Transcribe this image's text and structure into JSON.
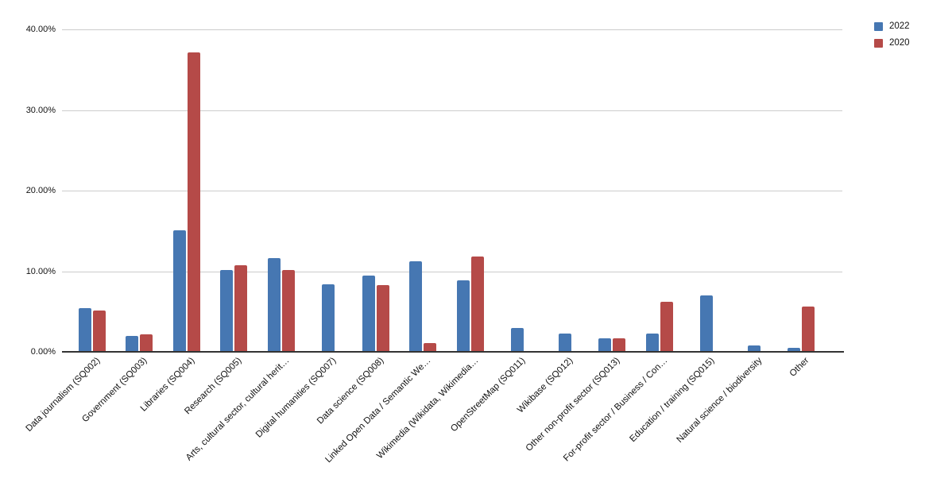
{
  "colors": {
    "background": "#ffffff",
    "gridline": "#cccccc",
    "axis_line": "#333333",
    "text": "#111111",
    "series_2022": "#4677b2",
    "series_2020": "#b54a48"
  },
  "chart_data": {
    "type": "bar",
    "categories": [
      "Data journalism (SQ002)",
      "Government (SQ003)",
      "Libraries (SQ004)",
      "Research (SQ005)",
      "Arts, cultural sector, cultural herit…",
      "Digital humanities (SQ007)",
      "Data science (SQ008)",
      "Linked Open Data / Semantic We…",
      "Wikimedia (Wikidata, Wikimedia…",
      "OpenStreetMap (SQ011)",
      "Wikibase (SQ012)",
      "Other non-profit sector (SQ013)",
      "For-profit sector / Business / Con…",
      "Education / training (SQ015)",
      "Natural science / biodiversity",
      "Other"
    ],
    "series": [
      {
        "name": "2022",
        "color": "#4677b2",
        "values": [
          5.4,
          2.0,
          15.1,
          10.1,
          11.6,
          8.4,
          9.5,
          11.2,
          8.9,
          3.0,
          2.3,
          1.7,
          2.3,
          7.0,
          0.8,
          0.5
        ]
      },
      {
        "name": "2020",
        "color": "#b54a48",
        "values": [
          5.1,
          2.2,
          37.1,
          10.7,
          10.1,
          0,
          8.3,
          1.1,
          11.8,
          0,
          0,
          1.7,
          6.2,
          0,
          0,
          5.6
        ]
      }
    ],
    "y_ticks": [
      {
        "value": 0,
        "label": "0.00%"
      },
      {
        "value": 10,
        "label": "10.00%"
      },
      {
        "value": 20,
        "label": "20.00%"
      },
      {
        "value": 30,
        "label": "30.00%"
      },
      {
        "value": 40,
        "label": "40.00%"
      }
    ],
    "ylim": [
      0,
      40
    ],
    "grid": true,
    "legend_position": "top-right"
  }
}
